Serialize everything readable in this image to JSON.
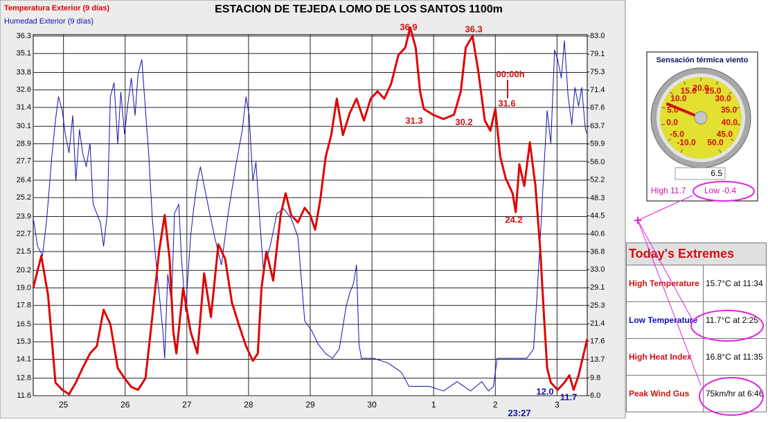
{
  "chart_data": {
    "type": "line",
    "title": "ESTACION DE TEJEDA LOMO DE LOS SANTOS 1100m",
    "series": [
      {
        "name": "Temperatura Exterior (9 días)",
        "color": "#e00000",
        "x": [
          -0.49,
          -0.36,
          -0.25,
          -0.13,
          -0.02,
          0.09,
          0.2,
          0.31,
          0.43,
          0.54,
          0.65,
          0.76,
          0.88,
          0.99,
          1.1,
          1.21,
          1.33,
          1.44,
          1.55,
          1.64,
          1.72,
          1.78,
          1.83,
          1.94,
          2.06,
          2.17,
          2.28,
          2.39,
          2.51,
          2.62,
          2.73,
          2.84,
          2.96,
          3.07,
          3.15,
          3.21,
          3.29,
          3.4,
          3.52,
          3.6,
          3.69,
          3.8,
          3.91,
          4.0,
          4.08,
          4.16,
          4.25,
          4.34,
          4.43,
          4.53,
          4.64,
          4.75,
          4.87,
          4.98,
          5.09,
          5.2,
          5.31,
          5.43,
          5.54,
          5.62,
          5.71,
          5.78,
          5.84,
          5.99,
          6.16,
          6.33,
          6.44,
          6.52,
          6.63,
          6.72,
          6.83,
          6.92,
          7.0,
          7.08,
          7.17,
          7.28,
          7.33,
          7.39,
          7.47,
          7.56,
          7.65,
          7.73,
          7.79,
          7.84,
          7.9,
          8.01,
          8.12,
          8.2,
          8.27,
          8.35,
          8.49
        ],
        "values": [
          19.0,
          21.2,
          18.5,
          12.5,
          12.0,
          11.7,
          12.5,
          13.5,
          14.5,
          15.0,
          17.5,
          16.5,
          13.5,
          12.8,
          12.2,
          12.0,
          12.8,
          17.0,
          21.5,
          24.0,
          21.0,
          16.0,
          14.5,
          19.0,
          16.0,
          14.5,
          20.0,
          17.0,
          22.0,
          21.0,
          18.0,
          16.5,
          15.0,
          14.0,
          14.5,
          19.0,
          21.5,
          19.5,
          24.0,
          25.5,
          24.0,
          23.5,
          24.5,
          24.0,
          23.0,
          25.0,
          28.0,
          29.5,
          32.0,
          29.5,
          31.0,
          32.0,
          30.5,
          32.0,
          32.5,
          32.0,
          33.0,
          35.0,
          35.5,
          36.9,
          35.5,
          32.5,
          31.3,
          30.9,
          30.6,
          30.9,
          32.5,
          35.5,
          36.3,
          34.0,
          30.5,
          29.8,
          31.3,
          28.0,
          26.5,
          25.5,
          24.2,
          27.5,
          26.0,
          29.0,
          26.0,
          21.5,
          17.0,
          13.5,
          12.5,
          12.0,
          12.5,
          13.0,
          12.0,
          13.0,
          15.5
        ]
      },
      {
        "name": "Humedad Exterior (9 días)",
        "color": "#1010b0",
        "axis": "y2",
        "x": [
          -0.49,
          -0.42,
          -0.34,
          -0.27,
          -0.19,
          -0.13,
          -0.08,
          -0.02,
          0.03,
          0.09,
          0.15,
          0.2,
          0.26,
          0.31,
          0.37,
          0.43,
          0.48,
          0.6,
          0.65,
          0.71,
          0.76,
          0.82,
          0.88,
          0.93,
          0.99,
          1.04,
          1.1,
          1.16,
          1.21,
          1.27,
          1.33,
          1.38,
          1.44,
          1.49,
          1.55,
          1.61,
          1.64,
          1.69,
          1.75,
          1.8,
          1.87,
          1.91,
          1.98,
          2.06,
          2.11,
          2.17,
          2.22,
          2.34,
          2.45,
          2.56,
          2.67,
          2.79,
          2.9,
          2.96,
          3.01,
          3.07,
          3.12,
          3.18,
          3.24,
          3.35,
          3.46,
          3.57,
          3.69,
          3.8,
          3.91,
          4.02,
          4.13,
          4.25,
          4.36,
          4.47,
          4.58,
          4.64,
          4.7,
          4.75,
          4.79,
          4.83,
          5.03,
          5.26,
          5.48,
          5.6,
          5.71,
          5.93,
          6.16,
          6.38,
          6.6,
          6.78,
          6.89,
          6.97,
          7.03,
          7.17,
          7.34,
          7.51,
          7.62,
          7.67,
          7.73,
          7.79,
          7.84,
          7.9,
          7.96,
          8.01,
          8.07,
          8.12,
          8.18,
          8.24,
          8.29,
          8.35,
          8.4,
          8.46,
          8.49
        ],
        "values": [
          44,
          38,
          36,
          44,
          57,
          65,
          70,
          67,
          62,
          58,
          66,
          52,
          63,
          58,
          55,
          60,
          47,
          43,
          38,
          45,
          70,
          73,
          60,
          71,
          62,
          68,
          74,
          66,
          75,
          78,
          67,
          58,
          44,
          36,
          28,
          20,
          14,
          32,
          26,
          45,
          47,
          36,
          24,
          40,
          46,
          52,
          55,
          47,
          40,
          34,
          45,
          55,
          63,
          70,
          66,
          52,
          56,
          44,
          33,
          38,
          45,
          46,
          44,
          40,
          22,
          20,
          17,
          15,
          14,
          16,
          25,
          28,
          30,
          34,
          17,
          14,
          14,
          13,
          11,
          8,
          8,
          8,
          7,
          9,
          7,
          9,
          7,
          8,
          14,
          14,
          14,
          14,
          16,
          26,
          40,
          55,
          67,
          60,
          80,
          78,
          74,
          82,
          70,
          64,
          72,
          68,
          72,
          63,
          62
        ]
      }
    ],
    "xlim": [
      -0.49,
      8.49
    ],
    "xticks": [
      {
        "value": 0,
        "label": "25"
      },
      {
        "value": 1,
        "label": "26"
      },
      {
        "value": 2,
        "label": "27"
      },
      {
        "value": 3,
        "label": "28"
      },
      {
        "value": 4,
        "label": "29"
      },
      {
        "value": 5,
        "label": "30"
      },
      {
        "value": 6,
        "label": "1"
      },
      {
        "value": 7,
        "label": "2"
      },
      {
        "value": 8,
        "label": "3"
      }
    ],
    "ylim": [
      11.6,
      36.3
    ],
    "yticks": [
      11.6,
      12.8,
      14.1,
      15.3,
      16.5,
      17.8,
      {
        "value": 19,
        "label": "19.0"
      },
      20.2,
      21.5,
      22.7,
      23.9,
      25.2,
      26.4,
      27.7,
      28.9,
      30.1,
      31.4,
      32.6,
      33.8,
      35.1,
      36.3
    ],
    "y2lim": [
      6.0,
      83.0
    ],
    "y2ticks": [
      {
        "value": 6,
        "label": "6.0"
      },
      9.8,
      13.7,
      17.6,
      21.4,
      25.3,
      29.1,
      {
        "value": 33,
        "label": "33.0"
      },
      36.8,
      40.6,
      44.5,
      48.3,
      52.2,
      {
        "value": 56,
        "label": "56.0"
      },
      59.9,
      63.7,
      67.6,
      71.4,
      75.3,
      79.1,
      {
        "value": 83,
        "label": "83.0"
      }
    ],
    "grid": true,
    "annotations": [
      "36.9",
      "36.3",
      "31.3",
      "30.2",
      "00:00h",
      "31.6",
      "24.2",
      "12.0",
      "11.7",
      "23:27"
    ]
  },
  "gauge": {
    "title": "Sensación térmica viento",
    "ticks": [
      {
        "value": -10,
        "label": "-10.0"
      },
      {
        "value": -5,
        "label": "-5.0"
      },
      {
        "value": 0,
        "label": "0.0"
      },
      {
        "value": 5,
        "label": "5.0"
      },
      {
        "value": 10,
        "label": "10.0"
      },
      {
        "value": 15,
        "label": "15.0"
      },
      {
        "value": 20,
        "label": "20.0"
      },
      {
        "value": 25,
        "label": "25.0"
      },
      {
        "value": 30,
        "label": "30.0"
      },
      {
        "value": 35,
        "label": "35.0"
      },
      {
        "value": 40,
        "label": "40.0"
      },
      {
        "value": 45,
        "label": "45.0"
      },
      {
        "value": 50,
        "label": "50.0"
      }
    ],
    "value": 6.5,
    "high": "High 11.7",
    "low": "Low -0.4"
  },
  "table": {
    "title": "Today's Extremes",
    "rows": [
      [
        "High Temperature",
        "15.7°C at 11:34"
      ],
      [
        "Low Temperature",
        "11.7°C at 2:25"
      ],
      [
        "High Heat Index",
        "16.8°C at 11:35"
      ],
      [
        "Peak Wind Gus",
        "75km/hr at 6:46"
      ]
    ]
  }
}
